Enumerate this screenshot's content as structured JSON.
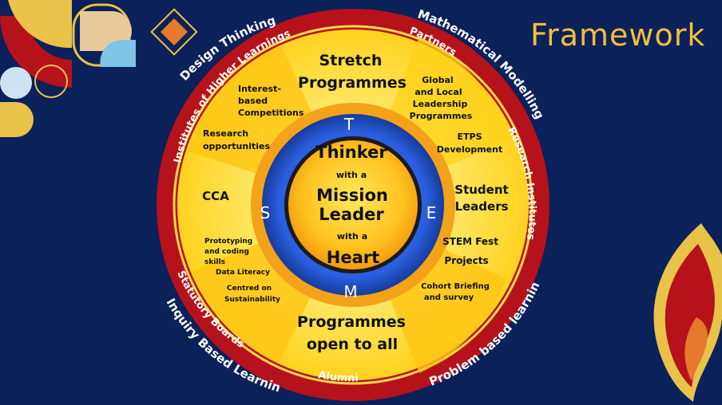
{
  "title": "Framework",
  "colors": {
    "background": "#0b2159",
    "outer_red": "#b5121b",
    "yellow_ring": "#ffe14d",
    "orange_ring": "#f7a21b",
    "blue_ring": "#1f4fc4",
    "title_gold": "#f2bf3c"
  },
  "outer_ring_text": {
    "design_thinking": "Design Thinking",
    "mathematical_modelling": "Mathematical Modelling",
    "research_institutes": "Research Institutes",
    "problem_based_learning": "Problem based learning",
    "inquiry_based_learning": "Inquiry Based Learning",
    "institutes_higher": "Institutes of Higher Learnings",
    "partners": "Partners",
    "statutory_boards": "Statutory Boards",
    "alumni": "Alumni"
  },
  "segments": {
    "stretch_programmes": [
      "Stretch",
      "Programmes"
    ],
    "global_local": [
      "Global",
      "and Local",
      "Leadership",
      "Programmes"
    ],
    "etps": [
      "ETPS",
      "Development"
    ],
    "student_leaders": [
      "Student",
      "Leaders"
    ],
    "stem_fest": [
      "STEM Fest",
      "Projects"
    ],
    "cohort": [
      "Cohort Briefing",
      "and survey"
    ],
    "programmes_open": [
      "Programmes",
      "open to all"
    ],
    "prototyping": [
      "Prototyping",
      "and coding",
      "skills"
    ],
    "data_literacy": "Data Literacy",
    "sustainability": [
      "Centred on",
      "Sustainability"
    ],
    "cca": "CCA",
    "research_opps": [
      "Research",
      "opportunities"
    ],
    "competitions": [
      "Interest-",
      "based",
      "Competitions"
    ]
  },
  "stem_letters": {
    "t": "T",
    "s": "S",
    "e": "E",
    "m": "M"
  },
  "center": {
    "thinker": "Thinker",
    "with_a_1": "with a",
    "mission": "Mission",
    "leader": "Leader",
    "with_a_2": "with a",
    "heart": "Heart"
  }
}
